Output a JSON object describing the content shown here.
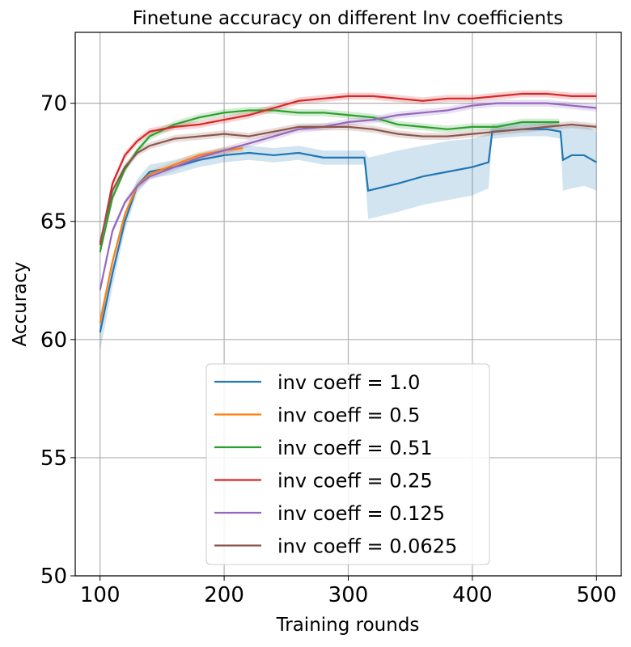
{
  "chart_data": {
    "type": "line",
    "title": "Finetune accuracy on different Inv coefficients",
    "xlabel": "Training rounds",
    "ylabel": "Accuracy",
    "xlim": [
      80,
      520
    ],
    "ylim": [
      50,
      73
    ],
    "xticks": [
      100,
      200,
      300,
      400,
      500
    ],
    "yticks": [
      50,
      55,
      60,
      65,
      70
    ],
    "grid": true,
    "legend_placement": "lower-center",
    "series": [
      {
        "name": "inv coeff = 1.0",
        "color": "#1f77b4",
        "x": [
          100,
          110,
          120,
          130,
          140,
          160,
          180,
          200,
          220,
          240,
          260,
          280,
          300,
          313,
          316,
          340,
          360,
          380,
          400,
          413,
          416,
          440,
          460,
          471,
          473,
          480,
          490,
          500
        ],
        "y": [
          60.3,
          62.8,
          65.0,
          66.5,
          67.1,
          67.3,
          67.6,
          67.8,
          67.9,
          67.8,
          67.9,
          67.7,
          67.7,
          67.7,
          66.3,
          66.6,
          66.9,
          67.1,
          67.3,
          67.5,
          68.8,
          68.9,
          68.9,
          68.8,
          67.6,
          67.8,
          67.8,
          67.5
        ],
        "lower": [
          59.5,
          62.2,
          64.6,
          66.2,
          66.8,
          67.0,
          67.3,
          67.5,
          67.6,
          67.5,
          67.6,
          67.4,
          67.4,
          67.4,
          65.1,
          65.4,
          65.7,
          65.9,
          66.1,
          66.4,
          68.5,
          68.6,
          68.6,
          68.5,
          66.3,
          66.4,
          66.5,
          66.3
        ],
        "upper": [
          61.1,
          63.4,
          65.4,
          66.8,
          67.4,
          67.6,
          67.9,
          68.1,
          68.2,
          68.1,
          68.2,
          68.0,
          68.0,
          68.0,
          67.7,
          68.0,
          68.2,
          68.4,
          68.5,
          68.7,
          69.1,
          69.2,
          69.2,
          69.1,
          69.0,
          69.1,
          69.1,
          68.8
        ]
      },
      {
        "name": "inv coeff = 0.5",
        "color": "#ff7f0e",
        "x": [
          100,
          110,
          120,
          130,
          140,
          160,
          180,
          200,
          215
        ],
        "y": [
          60.7,
          63.3,
          65.3,
          66.5,
          67.0,
          67.4,
          67.8,
          68.0,
          68.1
        ]
      },
      {
        "name": "inv coeff = 0.51",
        "color": "#2ca02c",
        "x": [
          100,
          110,
          120,
          130,
          140,
          160,
          180,
          200,
          220,
          240,
          260,
          280,
          300,
          320,
          340,
          360,
          380,
          400,
          420,
          440,
          460,
          470
        ],
        "y": [
          63.7,
          66.0,
          67.2,
          68.0,
          68.6,
          69.1,
          69.4,
          69.6,
          69.7,
          69.7,
          69.6,
          69.6,
          69.5,
          69.4,
          69.1,
          69.0,
          68.9,
          69.0,
          69.0,
          69.2,
          69.2,
          69.2
        ]
      },
      {
        "name": "inv coeff = 0.25",
        "color": "#d62728",
        "x": [
          100,
          110,
          120,
          130,
          140,
          160,
          180,
          200,
          220,
          240,
          260,
          280,
          300,
          320,
          340,
          360,
          380,
          400,
          420,
          440,
          460,
          480,
          500
        ],
        "y": [
          64.0,
          66.6,
          67.8,
          68.4,
          68.8,
          69.0,
          69.1,
          69.3,
          69.5,
          69.8,
          70.1,
          70.2,
          70.3,
          70.3,
          70.2,
          70.1,
          70.2,
          70.2,
          70.3,
          70.4,
          70.4,
          70.3,
          70.3
        ]
      },
      {
        "name": "inv coeff = 0.125",
        "color": "#9467bd",
        "x": [
          100,
          110,
          120,
          130,
          140,
          160,
          180,
          200,
          220,
          240,
          260,
          280,
          300,
          320,
          340,
          360,
          380,
          400,
          420,
          440,
          460,
          480,
          500
        ],
        "y": [
          62.1,
          64.6,
          65.8,
          66.5,
          66.9,
          67.3,
          67.7,
          68.0,
          68.3,
          68.6,
          68.9,
          69.0,
          69.2,
          69.3,
          69.5,
          69.6,
          69.7,
          69.9,
          70.0,
          70.0,
          70.0,
          69.9,
          69.8
        ]
      },
      {
        "name": "inv coeff = 0.0625",
        "color": "#8c564b",
        "x": [
          100,
          110,
          120,
          130,
          140,
          160,
          180,
          200,
          220,
          240,
          260,
          280,
          300,
          320,
          340,
          360,
          380,
          400,
          420,
          440,
          460,
          480,
          500
        ],
        "y": [
          64.1,
          66.3,
          67.3,
          67.9,
          68.2,
          68.5,
          68.6,
          68.7,
          68.6,
          68.8,
          69.0,
          69.0,
          69.0,
          68.9,
          68.7,
          68.6,
          68.6,
          68.7,
          68.8,
          68.9,
          69.0,
          69.1,
          69.0
        ]
      }
    ]
  }
}
